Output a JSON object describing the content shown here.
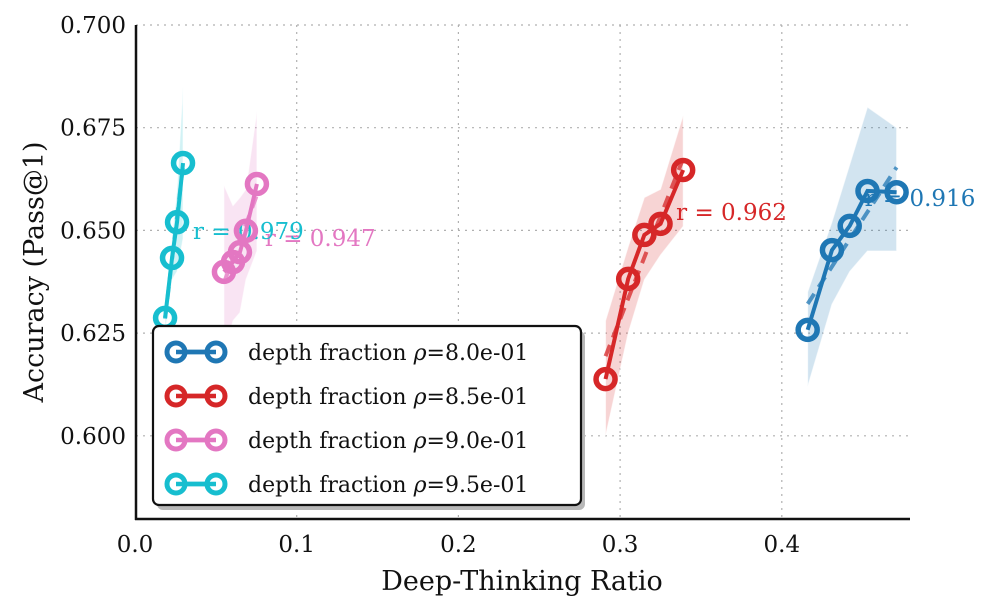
{
  "chart_data": {
    "type": "line",
    "title": "",
    "xlabel": "Deep-Thinking Ratio",
    "ylabel": "Accuracy (Pass@1)",
    "xlim": [
      0.0,
      0.478
    ],
    "ylim": [
      0.5795,
      0.7
    ],
    "xticks": [
      0.0,
      0.1,
      0.2,
      0.3,
      0.4
    ],
    "xtick_labels": [
      "0.0",
      "0.1",
      "0.2",
      "0.3",
      "0.4"
    ],
    "yticks": [
      0.6,
      0.625,
      0.65,
      0.675,
      0.7
    ],
    "ytick_labels": [
      "0.600",
      "0.625",
      "0.650",
      "0.675",
      "0.700"
    ],
    "grid": true,
    "legend_position": "bottom-left",
    "series": [
      {
        "name": "depth fraction ρ=8.0e-01",
        "legend_prefix": "depth fraction ",
        "legend_rho": "ρ",
        "legend_value": "=8.0e-01",
        "color": "#1f77b4",
        "correlation_label": "r = 0.916",
        "x": [
          0.416,
          0.431,
          0.442,
          0.453,
          0.471
        ],
        "y": [
          0.6258,
          0.6452,
          0.6511,
          0.6596,
          0.6593
        ],
        "band_upper": [
          0.635,
          0.652,
          0.666,
          0.68,
          0.675
        ],
        "band_lower": [
          0.612,
          0.632,
          0.64,
          0.645,
          0.645
        ]
      },
      {
        "name": "depth fraction ρ=8.5e-01",
        "legend_prefix": "depth fraction ",
        "legend_rho": "ρ",
        "legend_value": "=8.5e-01",
        "color": "#d62728",
        "correlation_label": "r = 0.962",
        "x": [
          0.291,
          0.305,
          0.315,
          0.325,
          0.339
        ],
        "y": [
          0.6138,
          0.6382,
          0.6489,
          0.6516,
          0.6647
        ],
        "band_upper": [
          0.628,
          0.646,
          0.658,
          0.66,
          0.678
        ],
        "band_lower": [
          0.6,
          0.625,
          0.638,
          0.644,
          0.651
        ]
      },
      {
        "name": "depth fraction ρ=9.0e-01",
        "legend_prefix": "depth fraction ",
        "legend_rho": "ρ",
        "legend_value": "=9.0e-01",
        "color": "#e377c2",
        "correlation_label": "r = 0.947",
        "x": [
          0.055,
          0.0606,
          0.0649,
          0.0686,
          0.0754
        ],
        "y": [
          0.6399,
          0.6423,
          0.6447,
          0.6499,
          0.6613
        ],
        "band_upper": [
          0.661,
          0.656,
          0.658,
          0.66,
          0.679
        ],
        "band_lower": [
          0.62,
          0.628,
          0.63,
          0.638,
          0.645
        ]
      },
      {
        "name": "depth fraction ρ=9.5e-01",
        "legend_prefix": "depth fraction ",
        "legend_rho": "ρ",
        "legend_value": "=9.5e-01",
        "color": "#17becf",
        "correlation_label": "r = 0.979",
        "x": [
          0.0186,
          0.0229,
          0.026,
          0.0297
        ],
        "y": [
          0.6287,
          0.6433,
          0.652,
          0.6664
        ],
        "band_upper": [
          0.632,
          0.648,
          0.66,
          0.685
        ],
        "band_lower": [
          0.625,
          0.638,
          0.64,
          0.648
        ]
      }
    ]
  }
}
